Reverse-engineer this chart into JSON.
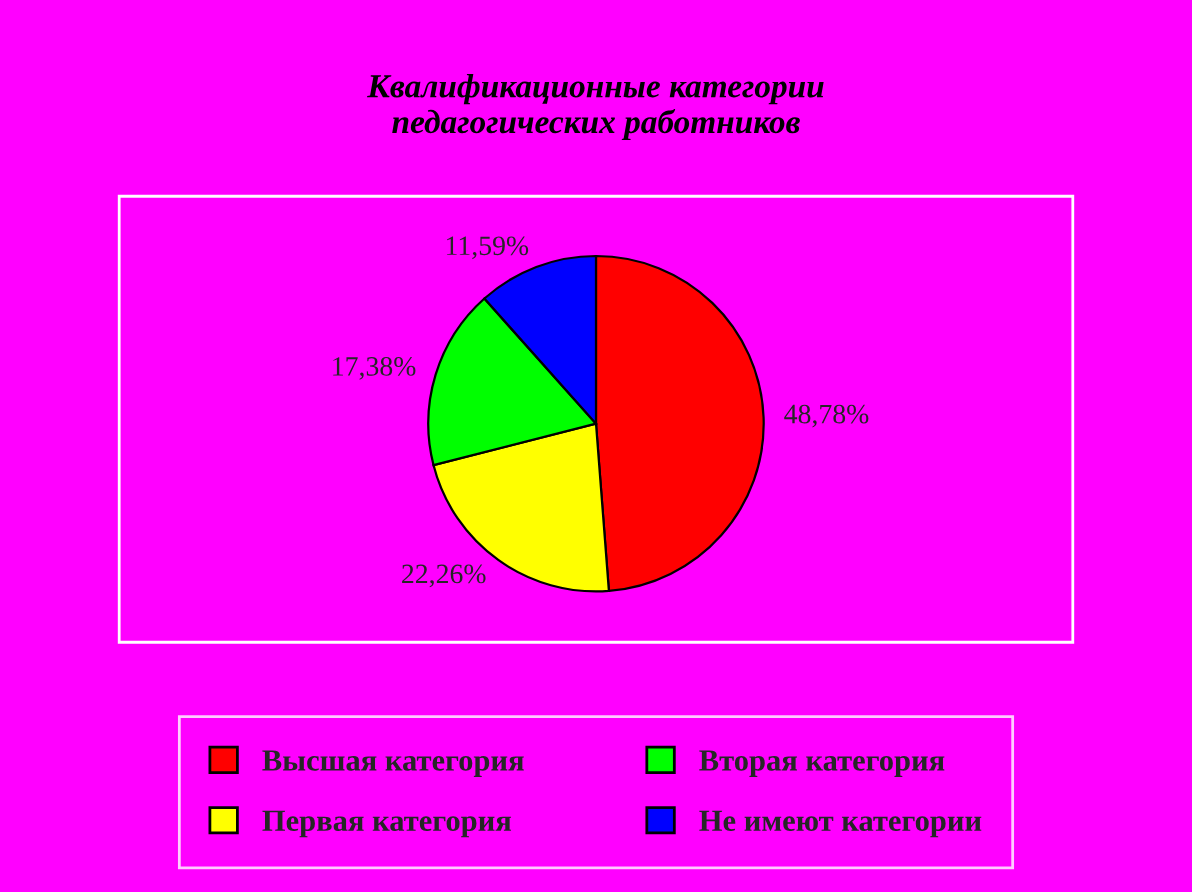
{
  "chart_data": {
    "type": "pie",
    "title": "Квалификационные категории\nпедагогических работников",
    "categories": [
      "Высшая категория",
      "Первая категория",
      "Вторая категория",
      "Не имеют категории"
    ],
    "values": [
      48.78,
      22.26,
      17.38,
      11.59
    ],
    "value_labels": [
      "48,78%",
      "22,26%",
      "17,38%",
      "11,59%"
    ],
    "colors": [
      "#ff0000",
      "#ffff00",
      "#00ff00",
      "#0000ff"
    ],
    "legend": "bottom"
  }
}
